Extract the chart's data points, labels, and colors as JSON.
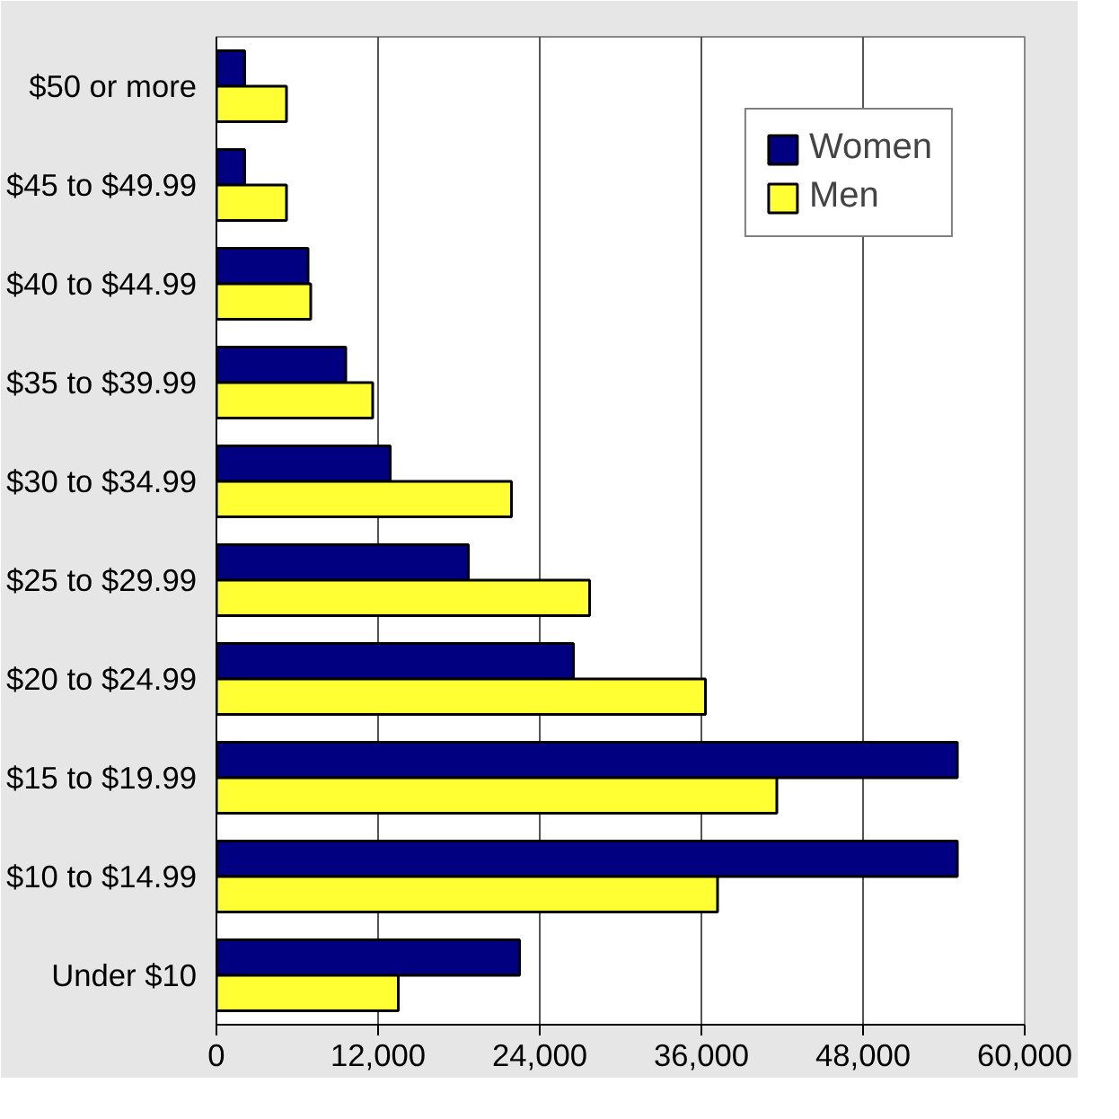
{
  "chart_data": {
    "type": "bar",
    "orientation": "horizontal",
    "categories": [
      "$50 or more",
      "$45 to $49.99",
      "$40 to $44.99",
      "$35 to $39.99",
      "$30 to $34.99",
      "$25 to $29.99",
      "$20 to $24.99",
      "$15 to $19.99",
      "$10 to $14.99",
      "Under $10"
    ],
    "series": [
      {
        "name": "Women",
        "color": "#000080",
        "values": [
          2100,
          2100,
          6800,
          9600,
          12900,
          18700,
          26500,
          55000,
          55000,
          22500
        ]
      },
      {
        "name": "Men",
        "color": "#ffff33",
        "values": [
          5200,
          5200,
          7000,
          11600,
          21900,
          27700,
          36300,
          41600,
          37200,
          13500
        ]
      }
    ],
    "xlim": [
      0,
      60000
    ],
    "xticks": [
      {
        "value": 0,
        "label": "0"
      },
      {
        "value": 12000,
        "label": "12,000"
      },
      {
        "value": 24000,
        "label": "24,000"
      },
      {
        "value": 36000,
        "label": "36,000"
      },
      {
        "value": 48000,
        "label": "48,000"
      },
      {
        "value": 60000,
        "label": "60,000"
      }
    ],
    "grid": "x",
    "legend": "top right"
  }
}
